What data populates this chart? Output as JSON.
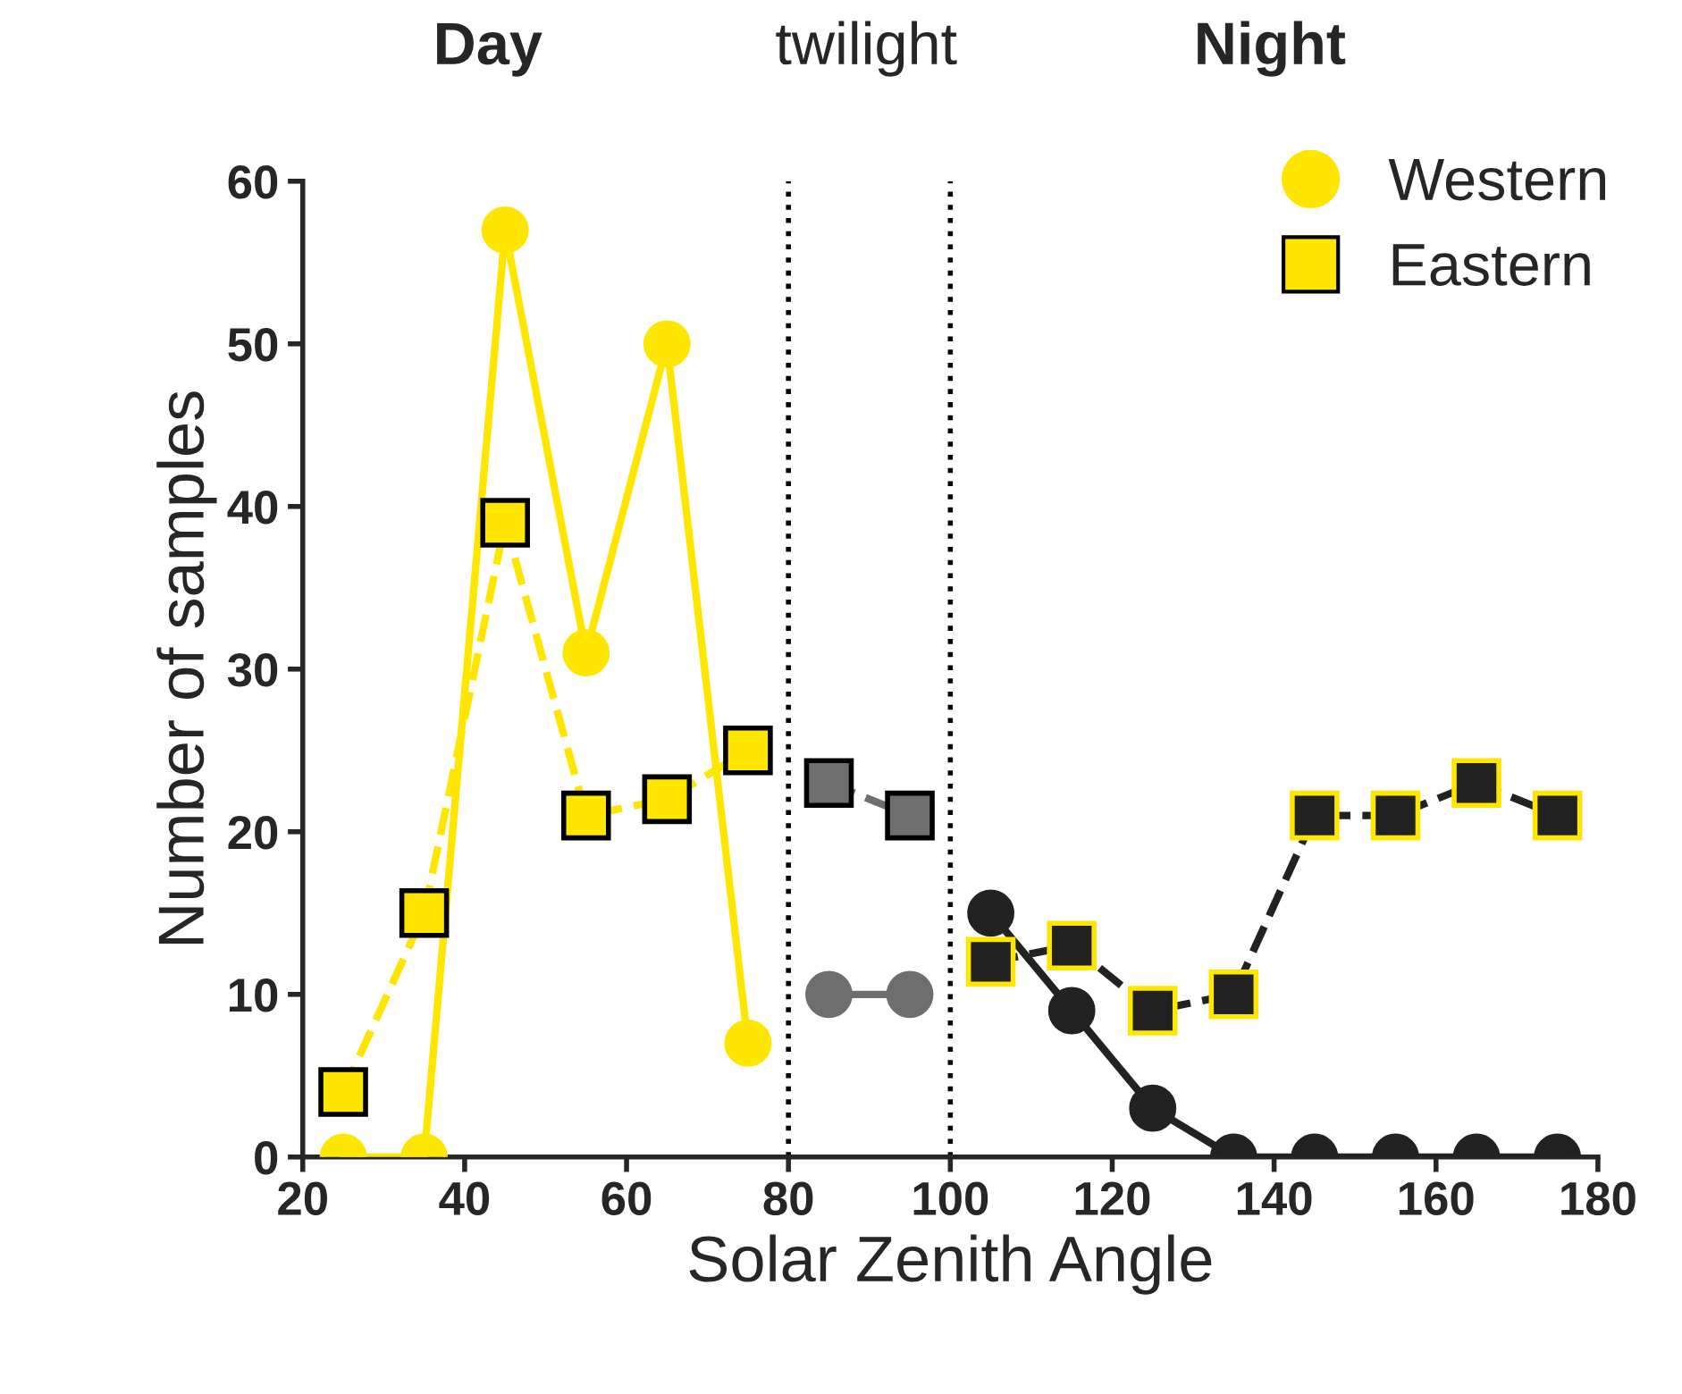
{
  "chart_data": {
    "type": "line",
    "xlabel": "Solar Zenith Angle",
    "ylabel": "Number of samples",
    "xlim": [
      20,
      180
    ],
    "xticks": [
      20,
      40,
      60,
      80,
      100,
      120,
      140,
      160,
      180
    ],
    "ylim": [
      0,
      60
    ],
    "yticks": [
      0,
      10,
      20,
      30,
      40,
      50,
      60
    ],
    "grid": false,
    "legend": "top right",
    "series": [
      {
        "name": "Western",
        "color": "#ffe600",
        "marker": "circle",
        "line_style": "solid",
        "x": [
          25,
          35,
          45,
          55,
          65,
          75
        ],
        "values": [
          0,
          0,
          57,
          31,
          50,
          7
        ]
      },
      {
        "color": "#6e6e6e",
        "marker": "circle",
        "line_style": "solid",
        "x": [
          85,
          95
        ],
        "values": [
          10,
          10
        ]
      },
      {
        "color": "#222222",
        "marker": "circle",
        "line_style": "solid",
        "x": [
          105,
          115,
          125,
          135,
          145,
          155,
          165,
          175
        ],
        "values": [
          15,
          9,
          3,
          0,
          0,
          0,
          0,
          0
        ]
      },
      {
        "name": "Eastern",
        "color": "#ffe600",
        "marker": "square",
        "line_style": "dashed",
        "x": [
          25,
          35,
          45,
          55,
          65,
          75
        ],
        "values": [
          4,
          15,
          39,
          21,
          22,
          25
        ]
      },
      {
        "color": "#6e6e6e",
        "marker": "square",
        "line_style": "dashed",
        "x": [
          85,
          95
        ],
        "values": [
          23,
          21
        ]
      },
      {
        "color": "#222222",
        "marker": "square",
        "line_style": "dashed",
        "x": [
          105,
          115,
          125,
          135,
          145,
          155,
          165,
          175
        ],
        "values": [
          12,
          13,
          9,
          10,
          21,
          21,
          23,
          21
        ]
      }
    ],
    "ref_lines": [
      {
        "axis": "x",
        "value": 80,
        "color": "#000000",
        "line_style": "dotted"
      },
      {
        "axis": "x",
        "value": 100,
        "color": "#000000",
        "line_style": "dotted"
      }
    ],
    "annotations": [
      "Day",
      "twilight",
      "Night"
    ]
  }
}
